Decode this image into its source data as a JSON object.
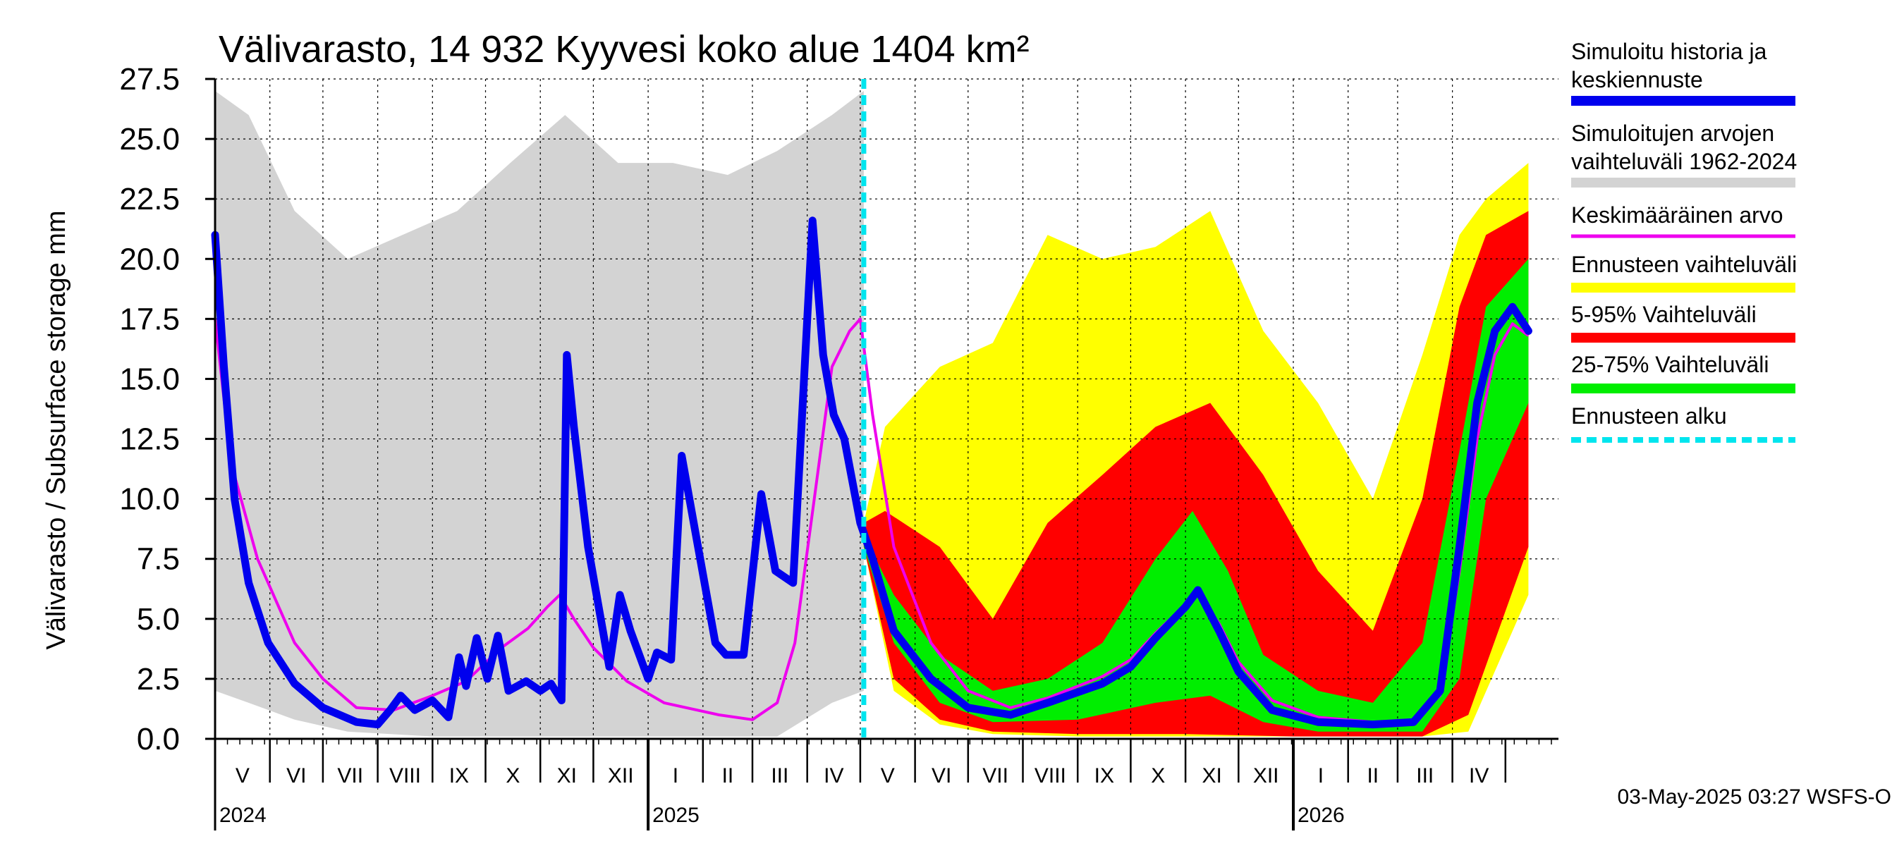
{
  "chart_data": {
    "type": "area",
    "title": "Välivarasto, 14 932 Kyyvesi koko alue 1404 km²",
    "ylabel": "Välivarasto / Subsurface storage  mm",
    "ylim": [
      0,
      27.5
    ],
    "yticks": [
      "0.0",
      "2.5",
      "5.0",
      "7.5",
      "10.0",
      "12.5",
      "15.0",
      "17.5",
      "20.0",
      "22.5",
      "25.0",
      "27.5"
    ],
    "grid": true,
    "legend_position": "right",
    "x_start": "2024-05-01",
    "x_end": "2026-05-31",
    "forecast_start": "2025-05-03",
    "months": [
      "V",
      "VI",
      "VII",
      "VIII",
      "IX",
      "X",
      "XI",
      "XII",
      "I",
      "II",
      "III",
      "IV",
      "V",
      "VI",
      "VII",
      "VIII",
      "IX",
      "X",
      "XI",
      "XII",
      "I",
      "II",
      "III",
      "IV"
    ],
    "years": [
      "2024",
      "2025",
      "2026"
    ],
    "colors": {
      "history": "#0000ee",
      "range_hist": "#d3d3d3",
      "mean": "#ee00ee",
      "fc_full": "#ffff00",
      "fc_5_95": "#ff0000",
      "fc_25_75": "#00ee00",
      "fc_start": "#00e5ee"
    },
    "series": [
      {
        "name": "Simuloitu historia ja keskiennuste",
        "points": [
          [
            "2024-05-01",
            21.0
          ],
          [
            "2024-05-06",
            15.5
          ],
          [
            "2024-05-12",
            10.0
          ],
          [
            "2024-05-20",
            6.5
          ],
          [
            "2024-05-31",
            4.0
          ],
          [
            "2024-06-15",
            2.3
          ],
          [
            "2024-07-01",
            1.3
          ],
          [
            "2024-07-20",
            0.7
          ],
          [
            "2024-08-01",
            0.6
          ],
          [
            "2024-08-08",
            1.2
          ],
          [
            "2024-08-14",
            1.8
          ],
          [
            "2024-08-22",
            1.2
          ],
          [
            "2024-09-01",
            1.6
          ],
          [
            "2024-09-10",
            0.9
          ],
          [
            "2024-09-16",
            3.4
          ],
          [
            "2024-09-20",
            2.2
          ],
          [
            "2024-09-26",
            4.2
          ],
          [
            "2024-10-02",
            2.5
          ],
          [
            "2024-10-08",
            4.3
          ],
          [
            "2024-10-14",
            2.0
          ],
          [
            "2024-10-24",
            2.4
          ],
          [
            "2024-11-01",
            2.0
          ],
          [
            "2024-11-07",
            2.3
          ],
          [
            "2024-11-13",
            1.6
          ],
          [
            "2024-11-16",
            16.0
          ],
          [
            "2024-11-20",
            13.0
          ],
          [
            "2024-11-28",
            8.0
          ],
          [
            "2024-12-10",
            3.0
          ],
          [
            "2024-12-16",
            6.0
          ],
          [
            "2024-12-22",
            4.5
          ],
          [
            "2025-01-01",
            2.5
          ],
          [
            "2025-01-06",
            3.6
          ],
          [
            "2025-01-14",
            3.3
          ],
          [
            "2025-01-20",
            11.8
          ],
          [
            "2025-01-28",
            8.5
          ],
          [
            "2025-02-08",
            4.0
          ],
          [
            "2025-02-14",
            3.5
          ],
          [
            "2025-02-24",
            3.5
          ],
          [
            "2025-03-06",
            10.2
          ],
          [
            "2025-03-14",
            7.0
          ],
          [
            "2025-03-24",
            6.5
          ],
          [
            "2025-04-04",
            21.6
          ],
          [
            "2025-04-10",
            16.0
          ],
          [
            "2025-04-16",
            13.5
          ],
          [
            "2025-04-22",
            12.5
          ],
          [
            "2025-05-01",
            9.0
          ],
          [
            "2025-05-08",
            7.5
          ],
          [
            "2025-05-20",
            4.5
          ],
          [
            "2025-06-10",
            2.5
          ],
          [
            "2025-07-01",
            1.3
          ],
          [
            "2025-07-25",
            1.0
          ],
          [
            "2025-08-15",
            1.5
          ],
          [
            "2025-09-15",
            2.3
          ],
          [
            "2025-10-01",
            3.0
          ],
          [
            "2025-10-15",
            4.2
          ],
          [
            "2025-11-01",
            5.5
          ],
          [
            "2025-11-08",
            6.2
          ],
          [
            "2025-11-20",
            4.5
          ],
          [
            "2025-12-01",
            2.8
          ],
          [
            "2025-12-20",
            1.2
          ],
          [
            "2026-01-15",
            0.7
          ],
          [
            "2026-02-15",
            0.6
          ],
          [
            "2026-03-10",
            0.7
          ],
          [
            "2026-03-25",
            2.0
          ],
          [
            "2026-04-05",
            8.0
          ],
          [
            "2026-04-15",
            14.0
          ],
          [
            "2026-04-25",
            17.0
          ],
          [
            "2026-05-05",
            18.0
          ],
          [
            "2026-05-14",
            17.0
          ]
        ]
      },
      {
        "name": "Keskimääräinen arvo",
        "points": [
          [
            "2024-05-01",
            17.5
          ],
          [
            "2024-05-10",
            11.5
          ],
          [
            "2024-05-25",
            7.5
          ],
          [
            "2024-06-15",
            4.0
          ],
          [
            "2024-07-01",
            2.5
          ],
          [
            "2024-07-20",
            1.3
          ],
          [
            "2024-08-10",
            1.2
          ],
          [
            "2024-09-01",
            1.8
          ],
          [
            "2024-09-20",
            2.4
          ],
          [
            "2024-10-10",
            3.8
          ],
          [
            "2024-10-25",
            4.6
          ],
          [
            "2024-11-05",
            5.5
          ],
          [
            "2024-11-12",
            6.0
          ],
          [
            "2024-11-20",
            5.0
          ],
          [
            "2024-12-01",
            3.8
          ],
          [
            "2024-12-20",
            2.4
          ],
          [
            "2025-01-10",
            1.5
          ],
          [
            "2025-02-10",
            1.0
          ],
          [
            "2025-03-01",
            0.8
          ],
          [
            "2025-03-15",
            1.5
          ],
          [
            "2025-03-25",
            4.0
          ],
          [
            "2025-04-05",
            10.0
          ],
          [
            "2025-04-15",
            15.5
          ],
          [
            "2025-04-25",
            17.0
          ],
          [
            "2025-05-01",
            17.5
          ],
          [
            "2025-05-08",
            13.5
          ],
          [
            "2025-05-20",
            8.0
          ],
          [
            "2025-06-10",
            4.0
          ],
          [
            "2025-07-01",
            2.0
          ],
          [
            "2025-07-25",
            1.3
          ],
          [
            "2025-08-15",
            1.7
          ],
          [
            "2025-09-15",
            2.6
          ],
          [
            "2025-10-01",
            3.3
          ],
          [
            "2025-10-15",
            4.4
          ],
          [
            "2025-11-01",
            5.6
          ],
          [
            "2025-11-08",
            6.0
          ],
          [
            "2025-11-20",
            4.8
          ],
          [
            "2025-12-01",
            3.2
          ],
          [
            "2025-12-20",
            1.6
          ],
          [
            "2026-01-15",
            0.9
          ],
          [
            "2026-02-15",
            0.7
          ],
          [
            "2026-03-10",
            0.8
          ],
          [
            "2026-03-25",
            1.8
          ],
          [
            "2026-04-05",
            7.0
          ],
          [
            "2026-04-15",
            12.5
          ],
          [
            "2026-04-25",
            16.0
          ],
          [
            "2026-05-05",
            17.3
          ],
          [
            "2026-05-14",
            16.8
          ]
        ]
      },
      {
        "name": "Simuloitujen arvojen vaihteluväli 1962-2024",
        "lower": [
          [
            "2024-05-01",
            2.0
          ],
          [
            "2024-05-20",
            1.5
          ],
          [
            "2024-06-15",
            0.8
          ],
          [
            "2024-07-15",
            0.3
          ],
          [
            "2024-09-01",
            0.1
          ],
          [
            "2024-11-01",
            0.1
          ],
          [
            "2025-01-01",
            0.1
          ],
          [
            "2025-03-15",
            0.1
          ],
          [
            "2025-04-15",
            1.5
          ],
          [
            "2025-05-03",
            2.0
          ]
        ],
        "upper": [
          [
            "2024-05-01",
            27.0
          ],
          [
            "2024-05-20",
            26.0
          ],
          [
            "2024-06-15",
            22.0
          ],
          [
            "2024-07-15",
            20.0
          ],
          [
            "2024-08-15",
            21.0
          ],
          [
            "2024-09-15",
            22.0
          ],
          [
            "2024-10-15",
            24.0
          ],
          [
            "2024-11-15",
            26.0
          ],
          [
            "2024-12-15",
            24.0
          ],
          [
            "2025-01-15",
            24.0
          ],
          [
            "2025-02-15",
            23.5
          ],
          [
            "2025-03-15",
            24.5
          ],
          [
            "2025-04-15",
            26.0
          ],
          [
            "2025-05-03",
            27.0
          ]
        ]
      },
      {
        "name": "Ennusteen vaihteluväli",
        "lower": [
          [
            "2025-05-03",
            8.0
          ],
          [
            "2025-05-20",
            2.0
          ],
          [
            "2025-06-15",
            0.6
          ],
          [
            "2025-07-15",
            0.2
          ],
          [
            "2025-09-01",
            0.1
          ],
          [
            "2025-11-01",
            0.1
          ],
          [
            "2026-01-01",
            0.1
          ],
          [
            "2026-03-15",
            0.1
          ],
          [
            "2026-04-10",
            0.3
          ],
          [
            "2026-05-14",
            6.0
          ]
        ],
        "upper": [
          [
            "2025-05-03",
            9.0
          ],
          [
            "2025-05-15",
            13.0
          ],
          [
            "2025-06-15",
            15.5
          ],
          [
            "2025-07-15",
            16.5
          ],
          [
            "2025-08-15",
            21.0
          ],
          [
            "2025-09-15",
            20.0
          ],
          [
            "2025-10-15",
            20.5
          ],
          [
            "2025-11-15",
            22.0
          ],
          [
            "2025-12-15",
            17.0
          ],
          [
            "2026-01-15",
            14.0
          ],
          [
            "2026-02-15",
            10.0
          ],
          [
            "2026-03-15",
            16.0
          ],
          [
            "2026-04-05",
            21.0
          ],
          [
            "2026-04-20",
            22.5
          ],
          [
            "2026-05-14",
            24.0
          ]
        ]
      },
      {
        "name": "5-95% Vaihteluväli",
        "lower": [
          [
            "2025-05-03",
            8.0
          ],
          [
            "2025-05-20",
            2.5
          ],
          [
            "2025-06-15",
            0.8
          ],
          [
            "2025-07-15",
            0.3
          ],
          [
            "2025-09-01",
            0.2
          ],
          [
            "2025-11-01",
            0.2
          ],
          [
            "2026-01-01",
            0.1
          ],
          [
            "2026-03-15",
            0.1
          ],
          [
            "2026-04-10",
            1.0
          ],
          [
            "2026-05-14",
            8.0
          ]
        ],
        "upper": [
          [
            "2025-05-03",
            9.0
          ],
          [
            "2025-05-15",
            9.5
          ],
          [
            "2025-06-15",
            8.0
          ],
          [
            "2025-07-15",
            5.0
          ],
          [
            "2025-08-15",
            9.0
          ],
          [
            "2025-09-15",
            11.0
          ],
          [
            "2025-10-15",
            13.0
          ],
          [
            "2025-11-15",
            14.0
          ],
          [
            "2025-12-15",
            11.0
          ],
          [
            "2026-01-15",
            7.0
          ],
          [
            "2026-02-15",
            4.5
          ],
          [
            "2026-03-15",
            10.0
          ],
          [
            "2026-04-05",
            18.0
          ],
          [
            "2026-04-20",
            21.0
          ],
          [
            "2026-05-14",
            22.0
          ]
        ]
      },
      {
        "name": "25-75% Vaihteluväli",
        "lower": [
          [
            "2025-05-03",
            8.0
          ],
          [
            "2025-05-20",
            4.0
          ],
          [
            "2025-06-15",
            1.5
          ],
          [
            "2025-07-15",
            0.7
          ],
          [
            "2025-09-01",
            0.8
          ],
          [
            "2025-10-15",
            1.5
          ],
          [
            "2025-11-15",
            1.8
          ],
          [
            "2025-12-15",
            0.7
          ],
          [
            "2026-01-15",
            0.3
          ],
          [
            "2026-03-15",
            0.3
          ],
          [
            "2026-04-05",
            2.5
          ],
          [
            "2026-04-20",
            10.0
          ],
          [
            "2026-05-14",
            14.0
          ]
        ],
        "upper": [
          [
            "2025-05-03",
            8.5
          ],
          [
            "2025-05-20",
            6.0
          ],
          [
            "2025-06-15",
            3.5
          ],
          [
            "2025-07-15",
            2.0
          ],
          [
            "2025-08-15",
            2.5
          ],
          [
            "2025-09-15",
            4.0
          ],
          [
            "2025-10-15",
            7.5
          ],
          [
            "2025-11-05",
            9.5
          ],
          [
            "2025-11-25",
            7.0
          ],
          [
            "2025-12-15",
            3.5
          ],
          [
            "2026-01-15",
            2.0
          ],
          [
            "2026-02-15",
            1.5
          ],
          [
            "2026-03-15",
            4.0
          ],
          [
            "2026-04-05",
            12.0
          ],
          [
            "2026-04-20",
            18.0
          ],
          [
            "2026-05-14",
            20.0
          ]
        ]
      }
    ],
    "footer": "03-May-2025 03:27 WSFS-O"
  },
  "legend": {
    "items": [
      {
        "line1": "Simuloitu historia ja",
        "line2": "keskiennuste",
        "color": "#0000ee",
        "style": "solid"
      },
      {
        "line1": "Simuloitujen arvojen",
        "line2": "vaihteluväli 1962-2024",
        "color": "#d3d3d3",
        "style": "solid"
      },
      {
        "line1": "Keskimääräinen arvo",
        "line2": "",
        "color": "#ee00ee",
        "style": "thin"
      },
      {
        "line1": "Ennusteen vaihteluväli",
        "line2": "",
        "color": "#ffff00",
        "style": "solid"
      },
      {
        "line1": "5-95% Vaihteluväli",
        "line2": "",
        "color": "#ff0000",
        "style": "solid"
      },
      {
        "line1": "25-75% Vaihteluväli",
        "line2": "",
        "color": "#00ee00",
        "style": "solid"
      },
      {
        "line1": "Ennusteen alku",
        "line2": "",
        "color": "#00e5ee",
        "style": "dashed"
      }
    ]
  }
}
